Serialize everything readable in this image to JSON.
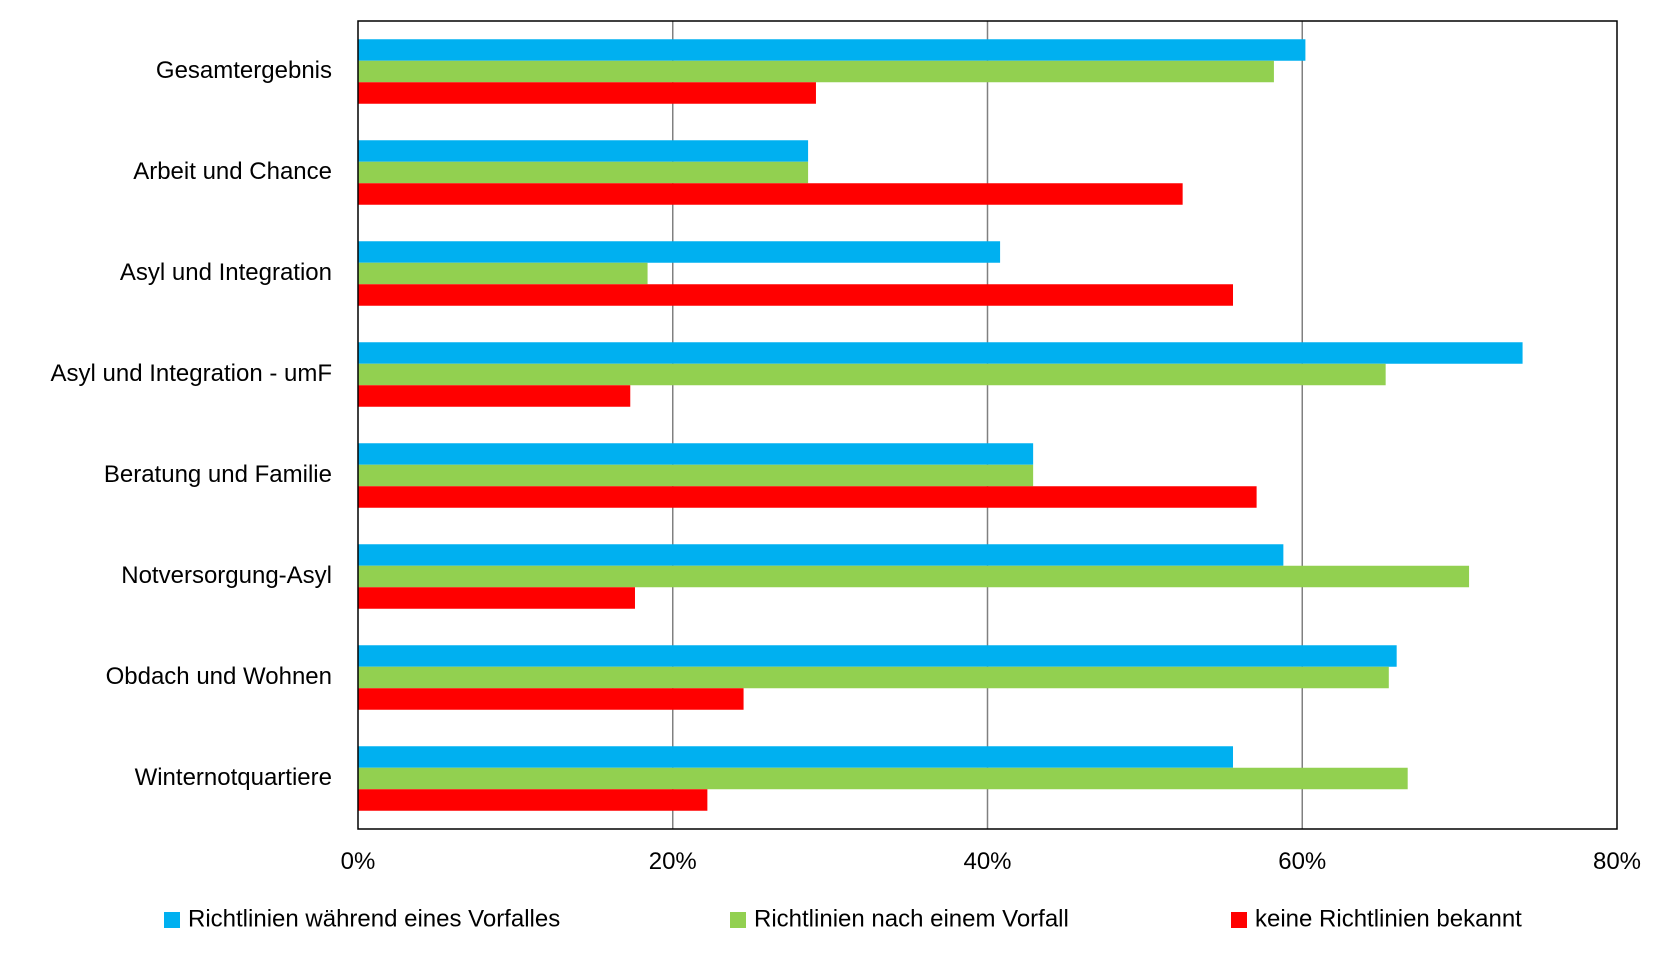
{
  "chart_data": {
    "type": "bar",
    "orientation": "horizontal",
    "categories": [
      "Gesamtergebnis",
      "Arbeit und Chance",
      "Asyl und Integration",
      "Asyl und Integration - umF",
      "Beratung und Familie",
      "Notversorgung-Asyl",
      "Obdach und Wohnen",
      "Winternotquartiere"
    ],
    "series": [
      {
        "name": "Richtlinien während eines Vorfalles",
        "color": "#00B0F0",
        "values": [
          60.2,
          28.6,
          40.8,
          74.0,
          42.9,
          58.8,
          66.0,
          55.6
        ]
      },
      {
        "name": "Richtlinien nach einem Vorfall",
        "color": "#92D050",
        "values": [
          58.2,
          28.6,
          18.4,
          65.3,
          42.9,
          70.6,
          65.5,
          66.7
        ]
      },
      {
        "name": "keine Richtlinien bekannt",
        "color": "#FF0000",
        "values": [
          29.1,
          52.4,
          55.6,
          17.3,
          57.1,
          17.6,
          24.5,
          22.2
        ]
      }
    ],
    "xlim": [
      0,
      80
    ],
    "xticks": [
      "0%",
      "20%",
      "40%",
      "60%",
      "80%"
    ],
    "xtick_values": [
      0,
      20,
      40,
      60,
      80
    ],
    "grid": "vertical",
    "legend_position": "bottom",
    "title": "",
    "xlabel": "",
    "ylabel": ""
  }
}
